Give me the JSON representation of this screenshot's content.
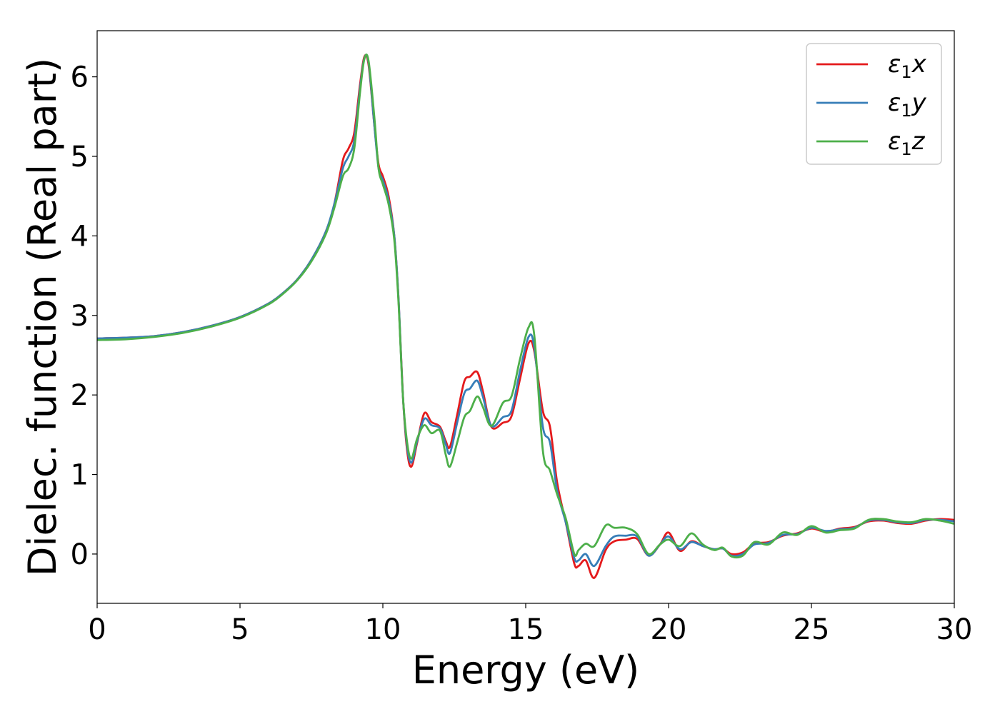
{
  "chart_data": {
    "type": "line",
    "xlabel": "Energy (eV)",
    "ylabel": "Dielec. function (Real part)",
    "xlim": [
      0,
      30
    ],
    "ylim": [
      -0.62,
      6.58
    ],
    "xticks": [
      0,
      5,
      10,
      15,
      20,
      25,
      30
    ],
    "yticks": [
      0,
      1,
      2,
      3,
      4,
      5,
      6
    ],
    "grid": false,
    "legend_position": "top-right",
    "series": [
      {
        "name": "ε₁x",
        "label_base": "ε",
        "label_sub": "1",
        "label_tail": "x",
        "color": "#e41a1c",
        "points": [
          [
            0,
            2.71
          ],
          [
            1,
            2.72
          ],
          [
            2,
            2.74
          ],
          [
            3,
            2.79
          ],
          [
            4,
            2.87
          ],
          [
            5,
            2.98
          ],
          [
            6,
            3.15
          ],
          [
            6.5,
            3.28
          ],
          [
            7,
            3.45
          ],
          [
            7.5,
            3.7
          ],
          [
            8,
            4.05
          ],
          [
            8.3,
            4.4
          ],
          [
            8.6,
            4.95
          ],
          [
            8.8,
            5.1
          ],
          [
            9,
            5.3
          ],
          [
            9.2,
            5.9
          ],
          [
            9.35,
            6.25
          ],
          [
            9.5,
            6.15
          ],
          [
            9.7,
            5.4
          ],
          [
            9.85,
            4.9
          ],
          [
            10,
            4.75
          ],
          [
            10.2,
            4.5
          ],
          [
            10.4,
            4.0
          ],
          [
            10.55,
            3.2
          ],
          [
            10.7,
            2.0
          ],
          [
            10.85,
            1.3
          ],
          [
            11,
            1.1
          ],
          [
            11.2,
            1.4
          ],
          [
            11.45,
            1.77
          ],
          [
            11.7,
            1.66
          ],
          [
            12,
            1.6
          ],
          [
            12.2,
            1.42
          ],
          [
            12.35,
            1.35
          ],
          [
            12.6,
            1.75
          ],
          [
            12.85,
            2.17
          ],
          [
            13.05,
            2.23
          ],
          [
            13.3,
            2.29
          ],
          [
            13.5,
            2.05
          ],
          [
            13.8,
            1.6
          ],
          [
            14.2,
            1.65
          ],
          [
            14.5,
            1.73
          ],
          [
            14.8,
            2.2
          ],
          [
            15.1,
            2.65
          ],
          [
            15.3,
            2.55
          ],
          [
            15.6,
            1.8
          ],
          [
            15.85,
            1.6
          ],
          [
            16.1,
            0.9
          ],
          [
            16.4,
            0.4
          ],
          [
            16.7,
            -0.12
          ],
          [
            16.85,
            -0.15
          ],
          [
            17.1,
            -0.08
          ],
          [
            17.4,
            -0.3
          ],
          [
            17.8,
            0.05
          ],
          [
            18.1,
            0.16
          ],
          [
            18.5,
            0.18
          ],
          [
            18.9,
            0.19
          ],
          [
            19.3,
            -0.02
          ],
          [
            19.7,
            0.12
          ],
          [
            20,
            0.27
          ],
          [
            20.4,
            0.04
          ],
          [
            20.8,
            0.16
          ],
          [
            21.2,
            0.1
          ],
          [
            21.6,
            0.06
          ],
          [
            21.9,
            0.07
          ],
          [
            22.2,
            0.0
          ],
          [
            22.6,
            0.02
          ],
          [
            23,
            0.13
          ],
          [
            23.5,
            0.15
          ],
          [
            24,
            0.23
          ],
          [
            24.5,
            0.26
          ],
          [
            25,
            0.32
          ],
          [
            25.5,
            0.28
          ],
          [
            26,
            0.32
          ],
          [
            26.5,
            0.34
          ],
          [
            27,
            0.41
          ],
          [
            27.5,
            0.42
          ],
          [
            28,
            0.39
          ],
          [
            28.5,
            0.38
          ],
          [
            29,
            0.42
          ],
          [
            29.5,
            0.44
          ],
          [
            30,
            0.43
          ]
        ]
      },
      {
        "name": "ε₁y",
        "label_base": "ε",
        "label_sub": "1",
        "label_tail": "y",
        "color": "#377eb8",
        "points": [
          [
            0,
            2.71
          ],
          [
            1,
            2.72
          ],
          [
            2,
            2.74
          ],
          [
            3,
            2.79
          ],
          [
            4,
            2.87
          ],
          [
            5,
            2.98
          ],
          [
            6,
            3.15
          ],
          [
            6.5,
            3.28
          ],
          [
            7,
            3.45
          ],
          [
            7.5,
            3.7
          ],
          [
            8,
            4.05
          ],
          [
            8.3,
            4.4
          ],
          [
            8.6,
            4.85
          ],
          [
            8.8,
            5.0
          ],
          [
            9,
            5.2
          ],
          [
            9.2,
            5.85
          ],
          [
            9.35,
            6.23
          ],
          [
            9.5,
            6.18
          ],
          [
            9.7,
            5.4
          ],
          [
            9.85,
            4.85
          ],
          [
            10,
            4.7
          ],
          [
            10.2,
            4.45
          ],
          [
            10.4,
            4.0
          ],
          [
            10.55,
            3.2
          ],
          [
            10.7,
            2.0
          ],
          [
            10.85,
            1.35
          ],
          [
            11,
            1.15
          ],
          [
            11.2,
            1.42
          ],
          [
            11.45,
            1.7
          ],
          [
            11.7,
            1.62
          ],
          [
            12,
            1.58
          ],
          [
            12.2,
            1.38
          ],
          [
            12.35,
            1.27
          ],
          [
            12.6,
            1.65
          ],
          [
            12.85,
            2.02
          ],
          [
            13.05,
            2.08
          ],
          [
            13.3,
            2.18
          ],
          [
            13.5,
            1.98
          ],
          [
            13.8,
            1.61
          ],
          [
            14.2,
            1.72
          ],
          [
            14.5,
            1.8
          ],
          [
            14.8,
            2.3
          ],
          [
            15.1,
            2.73
          ],
          [
            15.3,
            2.6
          ],
          [
            15.6,
            1.6
          ],
          [
            15.85,
            1.4
          ],
          [
            16.1,
            0.8
          ],
          [
            16.4,
            0.4
          ],
          [
            16.7,
            -0.05
          ],
          [
            16.85,
            -0.08
          ],
          [
            17.1,
            0.0
          ],
          [
            17.4,
            -0.15
          ],
          [
            17.8,
            0.1
          ],
          [
            18.1,
            0.22
          ],
          [
            18.5,
            0.23
          ],
          [
            18.9,
            0.22
          ],
          [
            19.3,
            -0.02
          ],
          [
            19.7,
            0.12
          ],
          [
            20,
            0.22
          ],
          [
            20.4,
            0.06
          ],
          [
            20.8,
            0.15
          ],
          [
            21.2,
            0.1
          ],
          [
            21.6,
            0.06
          ],
          [
            21.9,
            0.07
          ],
          [
            22.2,
            -0.02
          ],
          [
            22.6,
            0.0
          ],
          [
            23,
            0.12
          ],
          [
            23.5,
            0.14
          ],
          [
            24,
            0.24
          ],
          [
            24.5,
            0.25
          ],
          [
            25,
            0.33
          ],
          [
            25.5,
            0.29
          ],
          [
            26,
            0.31
          ],
          [
            26.5,
            0.33
          ],
          [
            27,
            0.42
          ],
          [
            27.5,
            0.43
          ],
          [
            28,
            0.4
          ],
          [
            28.5,
            0.39
          ],
          [
            29,
            0.43
          ],
          [
            29.5,
            0.43
          ],
          [
            30,
            0.41
          ]
        ]
      },
      {
        "name": "ε₁z",
        "label_base": "ε",
        "label_sub": "1",
        "label_tail": "z",
        "color": "#4daf4a",
        "points": [
          [
            0,
            2.69
          ],
          [
            1,
            2.7
          ],
          [
            2,
            2.73
          ],
          [
            3,
            2.78
          ],
          [
            4,
            2.86
          ],
          [
            5,
            2.97
          ],
          [
            6,
            3.14
          ],
          [
            6.5,
            3.27
          ],
          [
            7,
            3.44
          ],
          [
            7.5,
            3.68
          ],
          [
            8,
            4.02
          ],
          [
            8.3,
            4.35
          ],
          [
            8.6,
            4.75
          ],
          [
            8.8,
            4.85
          ],
          [
            9,
            5.1
          ],
          [
            9.2,
            5.8
          ],
          [
            9.35,
            6.22
          ],
          [
            9.5,
            6.2
          ],
          [
            9.7,
            5.5
          ],
          [
            9.85,
            4.85
          ],
          [
            10,
            4.65
          ],
          [
            10.2,
            4.4
          ],
          [
            10.4,
            3.95
          ],
          [
            10.55,
            3.15
          ],
          [
            10.7,
            2.0
          ],
          [
            10.85,
            1.4
          ],
          [
            11,
            1.2
          ],
          [
            11.2,
            1.45
          ],
          [
            11.45,
            1.62
          ],
          [
            11.7,
            1.52
          ],
          [
            12,
            1.55
          ],
          [
            12.2,
            1.25
          ],
          [
            12.35,
            1.1
          ],
          [
            12.6,
            1.4
          ],
          [
            12.85,
            1.72
          ],
          [
            13.05,
            1.8
          ],
          [
            13.3,
            1.98
          ],
          [
            13.5,
            1.85
          ],
          [
            13.8,
            1.61
          ],
          [
            14.2,
            1.9
          ],
          [
            14.5,
            1.98
          ],
          [
            14.8,
            2.45
          ],
          [
            15.1,
            2.85
          ],
          [
            15.3,
            2.75
          ],
          [
            15.6,
            1.3
          ],
          [
            15.85,
            1.05
          ],
          [
            16.1,
            0.75
          ],
          [
            16.4,
            0.45
          ],
          [
            16.7,
            0.0
          ],
          [
            16.85,
            0.05
          ],
          [
            17.1,
            0.13
          ],
          [
            17.4,
            0.1
          ],
          [
            17.8,
            0.36
          ],
          [
            18.1,
            0.33
          ],
          [
            18.5,
            0.33
          ],
          [
            18.9,
            0.25
          ],
          [
            19.3,
            0.0
          ],
          [
            19.7,
            0.12
          ],
          [
            20,
            0.18
          ],
          [
            20.4,
            0.1
          ],
          [
            20.8,
            0.26
          ],
          [
            21.2,
            0.12
          ],
          [
            21.6,
            0.05
          ],
          [
            21.9,
            0.08
          ],
          [
            22.2,
            -0.03
          ],
          [
            22.6,
            -0.02
          ],
          [
            23,
            0.15
          ],
          [
            23.5,
            0.12
          ],
          [
            24,
            0.27
          ],
          [
            24.5,
            0.24
          ],
          [
            25,
            0.35
          ],
          [
            25.5,
            0.27
          ],
          [
            26,
            0.3
          ],
          [
            26.5,
            0.32
          ],
          [
            27,
            0.43
          ],
          [
            27.5,
            0.44
          ],
          [
            28,
            0.41
          ],
          [
            28.5,
            0.4
          ],
          [
            29,
            0.44
          ],
          [
            29.5,
            0.42
          ],
          [
            30,
            0.38
          ]
        ]
      }
    ]
  }
}
